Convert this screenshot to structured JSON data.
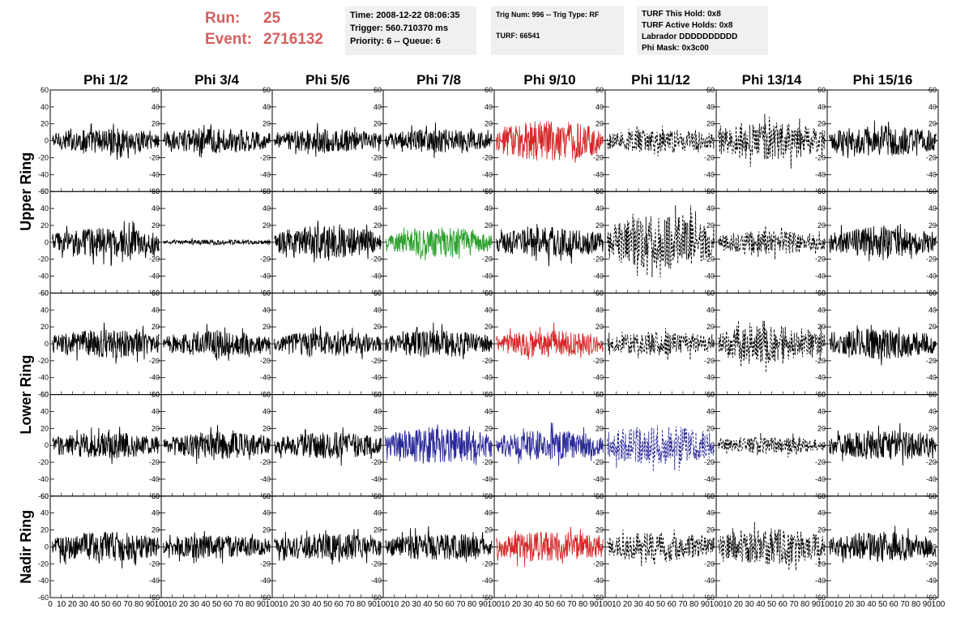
{
  "header": {
    "run_label": "Run:",
    "run_value": "25",
    "event_label": "Event:",
    "event_value": "2716132",
    "time_text": "Time: 2008-12-22 08:06:35",
    "trigger_text": "Trigger: 560.710370 ms",
    "priority_text": "Priority: 6 -- Queue: 6",
    "trig_num_text": "Trig Num: 996 -- Trig Type: RF",
    "turf_text": "TURF: 66541",
    "turf_this_hold_text": "TURF This Hold: 0x8",
    "turf_active_holds_text": "TURF Active Holds: 0x8",
    "labrador_text": "Labrador DDDDDDDDDD",
    "phi_mask_text": "Phi Mask: 0x3c00"
  },
  "colors": {
    "run_event": "#d35f5f",
    "info_bg": "#f0f0f0"
  },
  "chart_data": {
    "type": "line",
    "column_titles": [
      "Phi 1/2",
      "Phi 3/4",
      "Phi 5/6",
      "Phi 7/8",
      "Phi 9/10",
      "Phi 11/12",
      "Phi 13/14",
      "Phi 15/16"
    ],
    "row_group_labels": [
      "Upper Ring",
      "Lower Ring",
      "Nadir Ring"
    ],
    "ylim": [
      -60,
      60
    ],
    "y_ticks": [
      -60,
      -40,
      -20,
      0,
      20,
      40,
      60
    ],
    "xlim": [
      0,
      100
    ],
    "x_ticks": [
      0,
      10,
      20,
      30,
      40,
      50,
      60,
      70,
      80,
      90,
      100
    ],
    "grid": false,
    "trace_colors": {
      "black": "#000000",
      "red": "#d62728",
      "green": "#2ca02c",
      "blue": "#2a2a9a"
    },
    "panels": [
      [
        {
          "color": "black",
          "amp": 15,
          "style": "solid"
        },
        {
          "color": "black",
          "amp": 15,
          "style": "solid"
        },
        {
          "color": "black",
          "amp": 14,
          "style": "solid"
        },
        {
          "color": "black",
          "amp": 14,
          "style": "solid"
        },
        {
          "color": "red",
          "amp": 24,
          "style": "solid"
        },
        {
          "color": "black",
          "amp": 14,
          "style": "dashed"
        },
        {
          "color": "black",
          "amp": 22,
          "style": "dashed"
        },
        {
          "color": "black",
          "amp": 18,
          "style": "solid"
        }
      ],
      [
        {
          "color": "black",
          "amp": 18,
          "style": "solid"
        },
        {
          "color": "black",
          "amp": 3,
          "style": "solid"
        },
        {
          "color": "black",
          "amp": 20,
          "style": "solid"
        },
        {
          "color": "green",
          "amp": 18,
          "style": "solid"
        },
        {
          "color": "black",
          "amp": 18,
          "style": "solid"
        },
        {
          "color": "black",
          "amp": 32,
          "style": "dashed"
        },
        {
          "color": "black",
          "amp": 14,
          "style": "dashed"
        },
        {
          "color": "black",
          "amp": 18,
          "style": "solid"
        }
      ],
      [
        {
          "color": "black",
          "amp": 17,
          "style": "solid"
        },
        {
          "color": "black",
          "amp": 15,
          "style": "solid"
        },
        {
          "color": "black",
          "amp": 15,
          "style": "solid"
        },
        {
          "color": "black",
          "amp": 16,
          "style": "solid"
        },
        {
          "color": "red",
          "amp": 16,
          "style": "solid"
        },
        {
          "color": "black",
          "amp": 14,
          "style": "dashed"
        },
        {
          "color": "black",
          "amp": 22,
          "style": "dashed"
        },
        {
          "color": "black",
          "amp": 18,
          "style": "solid"
        }
      ],
      [
        {
          "color": "black",
          "amp": 16,
          "style": "solid"
        },
        {
          "color": "black",
          "amp": 16,
          "style": "solid"
        },
        {
          "color": "black",
          "amp": 16,
          "style": "solid"
        },
        {
          "color": "blue",
          "amp": 22,
          "style": "solid"
        },
        {
          "color": "blue",
          "amp": 18,
          "style": "solid"
        },
        {
          "color": "blue",
          "amp": 24,
          "style": "dashed"
        },
        {
          "color": "black",
          "amp": 10,
          "style": "dashed"
        },
        {
          "color": "black",
          "amp": 18,
          "style": "solid"
        }
      ],
      [
        {
          "color": "black",
          "amp": 18,
          "style": "solid"
        },
        {
          "color": "black",
          "amp": 14,
          "style": "solid"
        },
        {
          "color": "black",
          "amp": 16,
          "style": "solid"
        },
        {
          "color": "black",
          "amp": 16,
          "style": "solid"
        },
        {
          "color": "red",
          "amp": 18,
          "style": "solid"
        },
        {
          "color": "black",
          "amp": 18,
          "style": "dashed"
        },
        {
          "color": "black",
          "amp": 22,
          "style": "dashed"
        },
        {
          "color": "black",
          "amp": 18,
          "style": "solid"
        }
      ]
    ]
  }
}
